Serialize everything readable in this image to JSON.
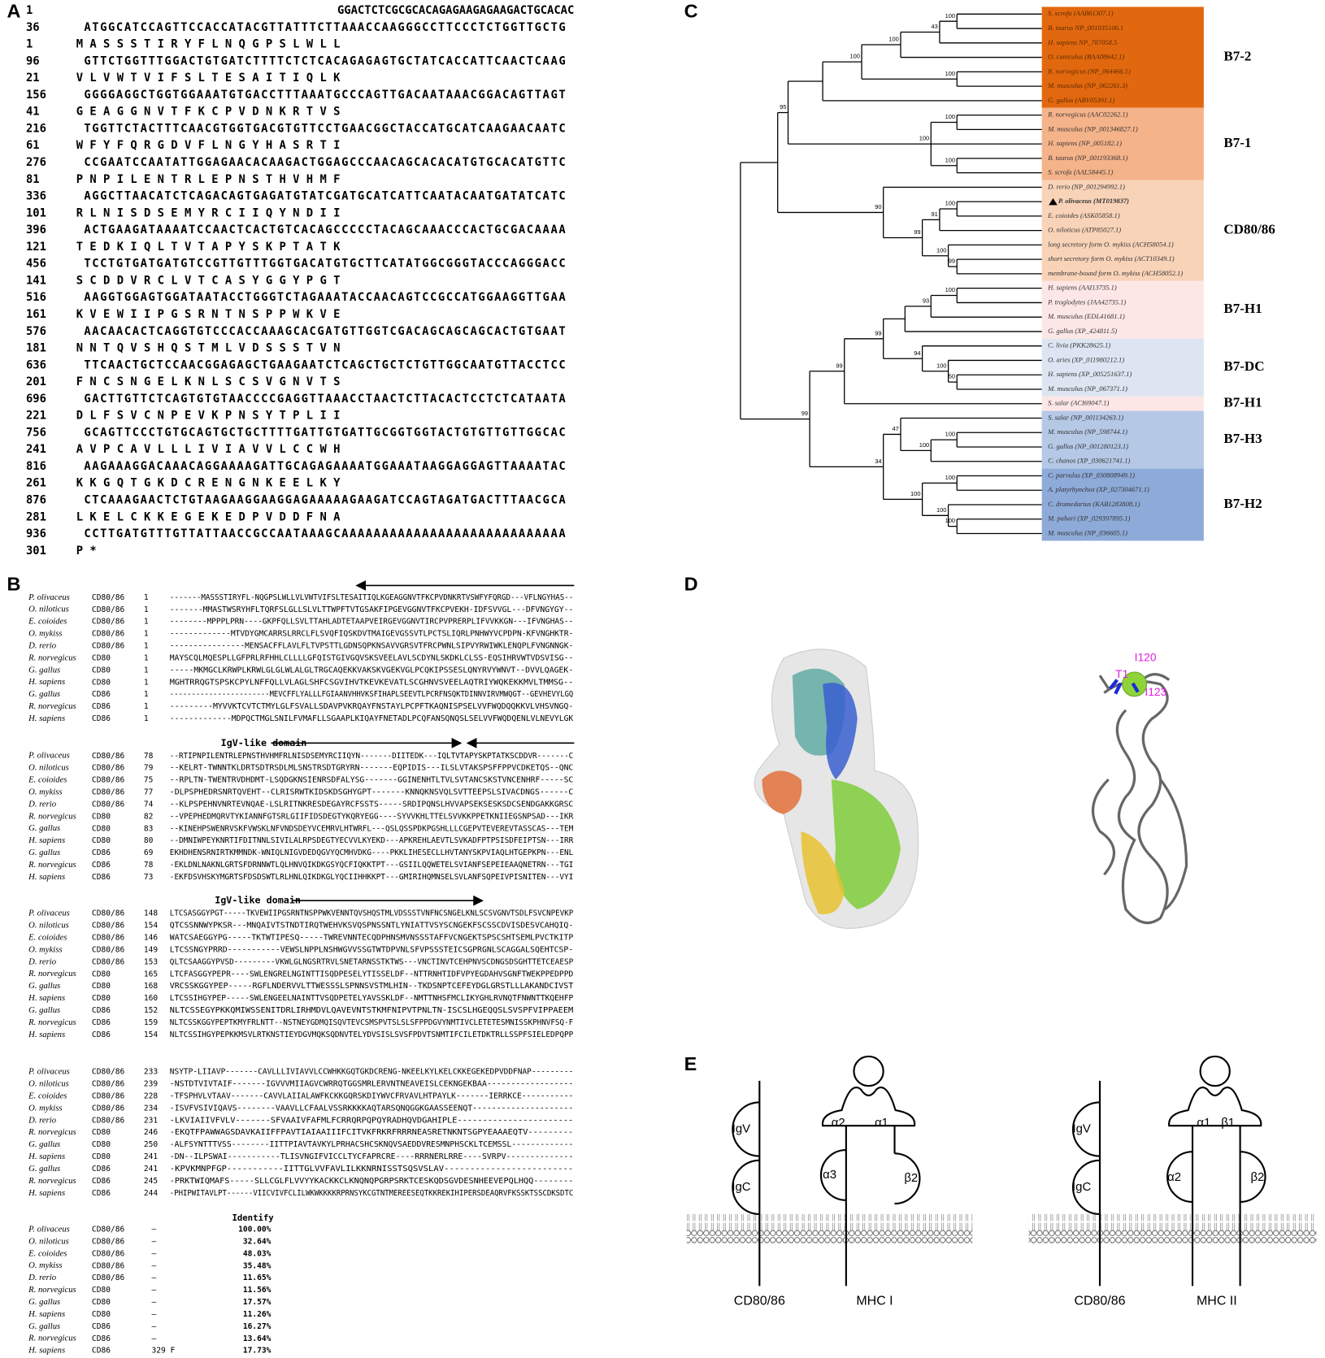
{
  "panel_labels": [
    "A",
    "B",
    "C",
    "D",
    "E"
  ],
  "panel_a": {
    "lines": [
      {
        "number": 1,
        "text": "GGACTCTCGCGCACAGAGAAGAGAAGACTGCACAC"
      },
      {
        "number": 36,
        "text": "ATGGCATCCAGTTCCACCATACGTTATTTCTTAAACCAAGGGCCTTCCCTCTGGTTGCTG"
      },
      {
        "number": 1,
        "text": "M A S S S T I R Y F L N Q G P S L W L L"
      },
      {
        "number": 96,
        "text": "GTTCTGGTTTGGACTGTGATCTTTTCTCTCACAGAGAGTGCTATCACCATTCAACTCAAG"
      },
      {
        "number": 21,
        "text": "V L V W T V I F S L T E S A I T I Q L K"
      },
      {
        "number": 156,
        "text": "GGGGAGGCTGGTGGAAATGTGACCTTTAAATGCCCAGTTGACAATAAACGGACAGTTAGT"
      },
      {
        "number": 41,
        "text": "G E A G G N V T F K C P V D N K R T V S"
      },
      {
        "number": 216,
        "text": "TGGTTCTACTTTCAACGTGGTGACGTGTTCCTGAACGGCTACCATGCATCAAGAACAATC"
      },
      {
        "number": 61,
        "text": "W F Y F Q R G D V F L N G Y H A S R T I"
      },
      {
        "number": 276,
        "text": "CCGAATCCAATATTGGAGAACACAAGACTGGAGCCCAACAGCACACATGTGCACATGTTC"
      },
      {
        "number": 81,
        "text": "P N P I L E N T R L E P N S T H V H M F"
      },
      {
        "number": 336,
        "text": "AGGCTTAACATCTCAGACAGTGAGATGTATCGATGCATCATTCAATACAATGATATCATC"
      },
      {
        "number": 101,
        "text": "R L N I S D S E M Y R C I I Q Y N D I I"
      },
      {
        "number": 396,
        "text": "ACTGAAGATAAAATCCAACTCACTGTCACAGCCCCCTACAGCAAACCCACTGCGACAAAA"
      },
      {
        "number": 121,
        "text": "T E D K I Q L T V T A P Y S K P T A T K"
      },
      {
        "number": 456,
        "text": "TCCTGTGATGATGTCCGTTGTTTGGTGACATGTGCTTCATATGGCGGGTACCCAGGGACC"
      },
      {
        "number": 141,
        "text": "S C D D V R C L V T C A S Y G G Y P G T"
      },
      {
        "number": 516,
        "text": "AAGGTGGAGTGGATAATACCTGGGTCTAGAAATACCAACAGTCCGCCATGGAAGGTTGAA"
      },
      {
        "number": 161,
        "text": "K V E W I I P G S R N T N S P P W K V E"
      },
      {
        "number": 576,
        "text": "AACAACACTCAGGTGTCCCACCAAAGCACGATGTTGGTCGACAGCAGCAGCACTGTGAAT"
      },
      {
        "number": 181,
        "text": "N N T Q V S H Q S T M L V D S S S T V N"
      },
      {
        "number": 636,
        "text": "TTCAACTGCTCCAACGGAGAGCTGAAGAATCTCAGCTGCTCTGTTGGCAATGTTACCTCC"
      },
      {
        "number": 201,
        "text": "F N C S N G E L K N L S C S V G N V T S"
      },
      {
        "number": 696,
        "text": "GACTTGTTCTCAGTGTGTAACCCCGAGGTTAAACCTAACTCTTACACTCCTCTCATAATA"
      },
      {
        "number": 221,
        "text": "D L F S V C N P E V K P N S Y T P L I I"
      },
      {
        "number": 756,
        "text": "GCAGTTCCCTGTGCAGTGCTGCTTTTGATTGTGATTGCGGTGGTACTGTGTTGTTGGCAC"
      },
      {
        "number": 241,
        "text": "A V P C A V L L L I V I A V V L C C W H"
      },
      {
        "number": 816,
        "text": "AAGAAAGGACAAACAGGAAAAGATTGCAGAGAAAATGGAAATAAGGAGGAGTTAAAATAC"
      },
      {
        "number": 261,
        "text": "K K G Q T G K D C R E N G N K E E L K Y"
      },
      {
        "number": 876,
        "text": "CTCAAAGAACTCTGTAAGAAGGAAGGAGAAAAAGAAGATCCAGTAGATGACTTTAACGCA"
      },
      {
        "number": 281,
        "text": "L K E L C K K E G E K E D P V D D F N A"
      },
      {
        "number": 936,
        "text": "CCTTGATGTTTGTTATTAACCGCCAATAAAGCAAAAAAAAAAAAAAAAAAAAAAAAAAAA"
      },
      {
        "number": 301,
        "text": "P *"
      }
    ]
  },
  "panel_b": {
    "domain_labels": [
      "IgV-like domain",
      "IgV-like domain"
    ],
    "blocks": [
      {
        "rows": [
          {
            "species": "P. olivaceus",
            "gene": "CD80/86",
            "start": 1,
            "sequence": "-------MASSSTIRYFL-NQGPSLWLLVLVWTVIFSLTESAITIQLKGEAGGNVTFKCPVDNKRTVSWFYFQRGD---VFLNGYHAS--"
          },
          {
            "species": "O. niloticus",
            "gene": "CD80/86",
            "start": 1,
            "sequence": "-------MMASTWSRYHFLTQRFSLGLLSLVLTTWPFTVTGSAKFIPGEVGGNVTFKCPVEKH-IDFSVVGL---DFVNGYGY--"
          },
          {
            "species": "E. coioides",
            "gene": "CD80/86",
            "start": 1,
            "sequence": "--------MPPPLPRN----GKPFQLLSVLTTAHLADTETAAPVEIRGEVGGNVTIRCPVPRERPLIFVVKKGN---IFVNGHAS--"
          },
          {
            "species": "O. mykiss",
            "gene": "CD80/86",
            "start": 1,
            "sequence": "-------------MTVDYGMCARRSLRRCLFLSVQFIQSKDVTMAIGEVGSSVTLPCTSLIQRLPNHWYVCPDPN-KFVNGHKTR-"
          },
          {
            "species": "D. rerio",
            "gene": "CD80/86",
            "start": 1,
            "sequence": "----------------MENSACFFLAVLFLTVPSTTLGDNSQPKNSAVVGRSVTFRCPWNLSIPVYRWIWKLENQPLFVNGNNGK-"
          },
          {
            "species": "R. norvegicus",
            "gene": "CD80",
            "start": 1,
            "sequence": "MAYSCQLMQESPLLGFPRLRFHHLCLLLLGFQISTGIVGQVSKSVEELAVLSCDYNLSKDKLCLSS-EQSIHRVWTVDSVISG--"
          },
          {
            "species": "G. gallus",
            "gene": "CD80",
            "start": 1,
            "sequence": "-----MKMGCLKRWPLKRWLGLGLWLALGLTRGCAQEKKVAKSKVGEKVGLPCQKIPSSESLQNYRVYWNVT--DVVLQAGEK-"
          },
          {
            "species": "H. sapiens",
            "gene": "CD80",
            "start": 1,
            "sequence": "MGHTRRQGTSPSKCPYLNFFQLLVLAGLSHFCSGVIHVTKEVKEVATLSCGHNVSVEELAQTRIYWQKEKKMVLTMMSG--"
          },
          {
            "species": "G. gallus",
            "gene": "CD86",
            "start": 1,
            "sequence": "-----------------------MEVCFFLYALLLFGIAANVHHVKSFIHAPLSEEVTLPCRFNSQKTDINNVIRVMWQGT--GEVHEVYLGQ"
          },
          {
            "species": "R. norvegicus",
            "gene": "CD86",
            "start": 1,
            "sequence": "---------MYVVKTCVTCTMYLGLFSVALLSDAVPVKRQAYFNSTAYLPCPFTKAQNISPSELVVFWQDQQKKVLVHSVNGQ-"
          },
          {
            "species": "H. sapiens",
            "gene": "CD86",
            "start": 1,
            "sequence": "-------------MDPQCTMGLSNILFVMAFLLSGAAPLKIQAYFNETADLPCQFANSQNQSLSELVVFWQDQENLVLNEVYLGK"
          }
        ]
      },
      {
        "rows": [
          {
            "species": "P. olivaceus",
            "gene": "CD80/86",
            "start": 78,
            "sequence": "--RTIPNPILENTRLEPNSTHVHMFRLNISDSEMYRCIIQYN-------DIITEDK---IQLTVTAPYSKPTATKSCDDVR-------C"
          },
          {
            "species": "O. niloticus",
            "gene": "CD80/86",
            "start": 79,
            "sequence": "--KELRT-TWNNTKLDRTSDTRSDLMLSNSTRSDTGRYRN-------EQPIDIS---ILSLVTAKSPSFFPPVCDKETQS--QNC"
          },
          {
            "species": "E. coioides",
            "gene": "CD80/86",
            "start": 75,
            "sequence": "--RPLTN-TWENTRVDHDMT-LSQDGKNSIENRSDFALYSG-------GGINENHTLTVLSVTANCSKSTVNCENHRF-----SC"
          },
          {
            "species": "O. mykiss",
            "gene": "CD80/86",
            "start": 77,
            "sequence": "-DLPSPHEDRSNRTQVEHT--CLRISRWTKIDSKDSGHYGPT-------KNNQKNSVQLSVTTEEPSLSIVACDNGS------C"
          },
          {
            "species": "D. rerio",
            "gene": "CD80/86",
            "start": 74,
            "sequence": "--KLPSPEHNVNRTEVNQAE-LSLRITNKRESDEGAYRCFSSTS-----SRDIPQNSLHVVAPSEKSESKSDCSENDGAKKGRSC"
          },
          {
            "species": "R. norvegicus",
            "gene": "CD80",
            "start": 82,
            "sequence": "--VPEPHEDMQRVTYKIANNFGTSRLGIIFIDSDEGTYKQRYEGG----SYVVKHLTTELSVVKKPPETKNIIEGSNPSAD---IKR"
          },
          {
            "species": "G. gallus",
            "gene": "CD80",
            "start": 83,
            "sequence": "--KINEHPSWENRVSKFVWSKLNFVNDSDEYVCEMRVLHTWRFL---QSLQSSPDKPGSHLLLCGEPVTEVEREVTASSCAS---TEM"
          },
          {
            "species": "H. sapiens",
            "gene": "CD80",
            "start": 80,
            "sequence": "--DMNIWPEYKNRTIFDITNNLSIVILALRPSDEGTYECVVLKYEKD---APKREHLAEVTLSVKADFPTPSISDFEIPTSN---IRR"
          },
          {
            "species": "G. gallus",
            "gene": "CD86",
            "start": 69,
            "sequence": "EKHDHENSRNIRTKMMNDK-WNIQLNIGVDEDQGVYQCMHVDKG----PKKLIHESECLLHVTANYSKPVIAQLHTGEPKPN---ENL"
          },
          {
            "species": "R. norvegicus",
            "gene": "CD86",
            "start": 78,
            "sequence": "-EKLDNLNAKNLGRTSFDRNNWTLQLHNVQIKDKGSYQCFIQKKTPT---GSIILQQWETELSVIANFSEPEIEAAQNETRN---TGI"
          },
          {
            "species": "H. sapiens",
            "gene": "CD86",
            "start": 73,
            "sequence": "-EKFDSVHSKYMGRTSFDSDSWTLRLHNLQIKDKGLYQCIIHHKKPT---GMIRIHQMNSELSVLANFSQPEIVPISNITEN---VYI"
          }
        ]
      },
      {
        "rows": [
          {
            "species": "P. olivaceus",
            "gene": "CD80/86",
            "start": 148,
            "sequence": "LTCSASGGYPGT-----TKVEWIIPGSRNTNSPPWKVENNTQVSHQSTMLVDSSSTVNFNCSNGELKNLSCSVGNVTSDLFSVCNPEVKP"
          },
          {
            "species": "O. niloticus",
            "gene": "CD80/86",
            "start": 154,
            "sequence": "QTCSSNNWYPKSR---MNQAIVTSTNDTIRQTWEHVKSVQSPNSSNTLYNIATTVSYSCNGEKFSCSSCDVISDESVCAHQIQ-"
          },
          {
            "species": "E. coioides",
            "gene": "CD80/86",
            "start": 146,
            "sequence": "WATCSAEGGYPG-----TKTWTIPESQ-----TWREVNNTECQDPHNSMVNSSSTAFFVCNGEKTSPSCSHTSEMLPVCTKITP"
          },
          {
            "species": "O. mykiss",
            "gene": "CD80/86",
            "start": 149,
            "sequence": "LTCSSNGYPRRD-----------VEWSLNPPLNSHWGVVSSGTWTDPVNLSFVPSSSTEICSGPRGNLSCAGGALSQEHTCSP-"
          },
          {
            "species": "D. rerio",
            "gene": "CD80/86",
            "start": 153,
            "sequence": "QLTCSAAGGYPVSD---------VKWLGLNGSRTRVLSNETARNSSTKTWS---VNCTINVTCEHPNVSCDNGSDSGHTTETCEAESP"
          },
          {
            "species": "R. norvegicus",
            "gene": "CD80",
            "start": 165,
            "sequence": "LTCFASGGYPEPR----SWLENGRELNGINTTISQDPESELYTISSELDF--NTTRNHTIDFVPYEGDAHVSGNFTWEKPPEDPPD"
          },
          {
            "species": "G. gallus",
            "gene": "CD80",
            "start": 168,
            "sequence": "VRCSSKGGYPEP-----RGFLNDERVVLTTWESSSLSPNNSVSTMLHIN--TKDSNPTCEFEYDGLGRSTLLLAKANDCIVST"
          },
          {
            "species": "H. sapiens",
            "gene": "CD80",
            "start": 160,
            "sequence": "LTCSSIHGYPEP-----SWLENGEELNAINTTVSQDPETELYAVSSKLDF--NMTTNHSFMCLIKYGHLRVNQTFNWNTTKQEHFP"
          },
          {
            "species": "G. gallus",
            "gene": "CD86",
            "start": 152,
            "sequence": "NLTCSSEGYPKKQMIWSSENITDRLIRHMDVLQAVEVNTSTKMFNIPVTPNLTN-ISCSLHGEQQSLSVSPFVIPPAEEM"
          },
          {
            "species": "R. norvegicus",
            "gene": "CD86",
            "start": 159,
            "sequence": "NLTCSSKGGYPEPTKMYFRLNTT--NSTNEYGDMQISQVTEVCSMSPVTSLSLSFPPDGVYNMTIVCLETETESMNISSKPHNVFSQ-F"
          },
          {
            "species": "H. sapiens",
            "gene": "CD86",
            "start": 154,
            "sequence": "NLTCSSIHGYPEPKKMSVLRTKNSTIEYDGVMQKSQDNVTELYDVSISLSVSFPDVTSNMTIFCILETDKTRLLSSPFSIELEDPQPP"
          }
        ]
      },
      {
        "rows": [
          {
            "species": "P. olivaceus",
            "gene": "CD80/86",
            "start": 233,
            "sequence": "NSYTP-LIIAVP-------CAVLLLIVIAVVLCCWHKKGQTGKDCRENG-NKEELKYLKELCKKEGEKEDPVDDFNAP---------"
          },
          {
            "species": "O. niloticus",
            "gene": "CD80/86",
            "start": 239,
            "sequence": "-NSTDTVIVTAIF-------IGVVVMIIAGVCWRRQTGGSMRLERVNTNEAVEISLCEKNGEKBAA------------------"
          },
          {
            "species": "E. coioides",
            "gene": "CD80/86",
            "start": 228,
            "sequence": "-TFSPHVLVTAAV-------CAVVLAIIALAWFKCKKGQRSKDIYWVCFRVAVLHTPAYLK-------IERRKCE-----------"
          },
          {
            "species": "O. mykiss",
            "gene": "CD80/86",
            "start": 234,
            "sequence": "-ISVFVSIVIQAVS--------VAAVLLCFAALVSSRKKKKAQTARSQNQGGKGAASSEENQT---------------------"
          },
          {
            "species": "D. rerio",
            "gene": "CD80/86",
            "start": 231,
            "sequence": "-LKVIAIIVFVLV-------SFVAAIVFAFMLFCRRQRPQPQYRADHQVDGAHIPLE-----------------------"
          },
          {
            "species": "R. norvegicus",
            "gene": "CD80",
            "start": 246,
            "sequence": "-EKQTFPAWWAGSDAVKAIIFFPAVTIAIAAIIIFCITVKFRKRFRRRNEASRETNKNTSGPYEAAAEQTV---------"
          },
          {
            "species": "G. gallus",
            "gene": "CD80",
            "start": 250,
            "sequence": "-ALFSYNTTTVSS--------IITTPIAVTAVKYLPRHACSHCSKNQVSAEDDVRESMNPHSCKLTCEMSSL-------------"
          },
          {
            "species": "H. sapiens",
            "gene": "CD80",
            "start": 241,
            "sequence": "-DN--ILPSWAI-----------TLISVNGIFVICCLTYCFAPRCRE----RRRNERLRRE----SVRPV--------------"
          },
          {
            "species": "G. gallus",
            "gene": "CD86",
            "start": 241,
            "sequence": "-KPVKMNPFGP-----------IITTGLVVFAVLILKKNRNISSTSQSVSLAV-------------------------"
          },
          {
            "species": "R. norvegicus",
            "gene": "CD86",
            "start": 245,
            "sequence": "-PRKTWIQMAFS-----SLLCGLFLVVYYKACKKCLKNQNQPGRPSRKTCESKQDSGVDESNHEEVEPQLHQQ--------"
          },
          {
            "species": "H. sapiens",
            "gene": "CD86",
            "start": 244,
            "sequence": "-PHIPWITAVLPT------VIICVIVFCLILWKWKKKKRPRNSYKCGTNTMEREESEQTKKREKIHIPERSDEAQRVFKSSKTSSCDKSDTC"
          }
        ]
      }
    ],
    "identity": {
      "title": "Identify",
      "rows": [
        {
          "species": "P. olivaceus",
          "gene": "CD80/86",
          "mark": "–",
          "value": "100.00%"
        },
        {
          "species": "O. niloticus",
          "gene": "CD80/86",
          "mark": "–",
          "value": "32.64%"
        },
        {
          "species": "E. coioides",
          "gene": "CD80/86",
          "mark": "–",
          "value": "48.03%"
        },
        {
          "species": "O. mykiss",
          "gene": "CD80/86",
          "mark": "–",
          "value": "35.48%"
        },
        {
          "species": "D. rerio",
          "gene": "CD80/86",
          "mark": "–",
          "value": "11.65%"
        },
        {
          "species": "R. norvegicus",
          "gene": "CD80",
          "mark": "–",
          "value": "11.56%"
        },
        {
          "species": "G. gallus",
          "gene": "CD80",
          "mark": "–",
          "value": "17.57%"
        },
        {
          "species": "H. sapiens",
          "gene": "CD80",
          "mark": "–",
          "value": "11.26%"
        },
        {
          "species": "G. gallus",
          "gene": "CD86",
          "mark": "–",
          "value": "16.27%"
        },
        {
          "species": "R. norvegicus",
          "gene": "CD86",
          "mark": "–",
          "value": "13.64%"
        },
        {
          "species": "H. sapiens",
          "gene": "CD86",
          "mark": "329 F",
          "value": "17.73%"
        }
      ]
    }
  },
  "panel_c": {
    "groups": [
      {
        "name": "B7-2",
        "color": "#e2680f",
        "leaves": [
          "S. scrofa (AAB61307.1)",
          "B. taurus NP_001035106.1",
          "H. sapiens NP_787058.5",
          "O. cuniculus (BAA08642.1)",
          "R. norvegicus (NP_064466.1)",
          "M. musculus (NP_062261.3)",
          "G. gallus (ABV05391.1)"
        ]
      },
      {
        "name": "B7-1",
        "color": "#f5b38a",
        "leaves": [
          "R. norvegicus (AAC02262.1)",
          "M. musculus (NP_001346827.1)",
          "H. sapiens (NP_005182.1)",
          "B. taurus (NP_001193368.1)",
          "S. scrofa (AAL58445.1)"
        ]
      },
      {
        "name": "CD80/86",
        "color": "#f9d3b8",
        "leaves": [
          "D. rerio (NP_001294992.1)",
          "P. olivaceus (MT019837)",
          "E. coioides (ASK05858.1)",
          "O. niloticus (ATP85027.1)",
          "long secretory form O. mykiss (ACH58054.1)",
          "short secretory form O. mykiss (ACT10349.1)",
          "membrane-bound form O. mykiss (ACH58052.1)"
        ]
      },
      {
        "name": "B7-H1",
        "color": "#fde6e6",
        "leaves": [
          "H. sapiens (AAI13735.1)",
          "P. troglodytes (JAA42735.1)",
          "M. musculus (EDL41681.1)",
          "G. gallus (XP_424811.5)"
        ]
      },
      {
        "name": "B7-DC",
        "color": "#dce5f1",
        "leaves": [
          "C. livia (PKK28625.1)",
          "O. aries (XP_011980212.1)",
          "H. sapiens (XP_005251637.1)",
          "M. musculus (NP_067371.1)"
        ]
      },
      {
        "name": "B7-H1",
        "color": "#fde6e6",
        "leaves": [
          "S. salar (ACI69047.1)"
        ]
      },
      {
        "name": "B7-H3",
        "color": "#b5c8e6",
        "leaves": [
          "S. salar (NP_001134263.1)",
          "M. musculus (NP_598744.1)",
          "G. gallus (NP_001280123.1)",
          "C. chanos (XP_030621741.1)"
        ]
      },
      {
        "name": "B7-H2",
        "color": "#8eaad8",
        "leaves": [
          "C. parvulus (XP_030808949.1)",
          "A. platyrhynchos (XP_027304671.1)",
          "C. dromedarius (KAB1283808.1)",
          "M. pahari (XP_029397895.1)",
          "M. musculus (NP_036605.1)"
        ]
      }
    ],
    "bootstrap": [
      100,
      43,
      100,
      100,
      100,
      95,
      100,
      100,
      100,
      100,
      91,
      99,
      100,
      99,
      90,
      100,
      93,
      50,
      100,
      94,
      99,
      99,
      100,
      100,
      47,
      100,
      100,
      100,
      100,
      34,
      99
    ]
  },
  "panel_d": {
    "labels": [
      "I120",
      "T1",
      "I123"
    ]
  },
  "panel_e": {
    "left": {
      "domains": [
        "IgV",
        "IgC",
        "α2",
        "α1",
        "α3",
        "β2"
      ],
      "captions": [
        "CD80/86",
        "MHC I"
      ]
    },
    "right": {
      "domains": [
        "IgV",
        "IgC",
        "α1",
        "β1",
        "α2",
        "β2"
      ],
      "captions": [
        "CD80/86",
        "MHC II"
      ]
    }
  }
}
